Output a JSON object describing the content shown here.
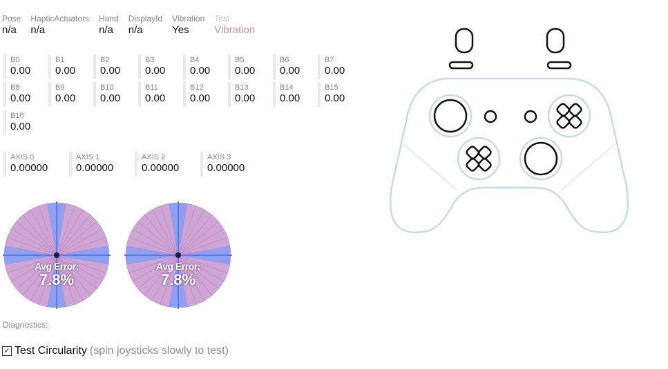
{
  "props": [
    {
      "label": "Pose",
      "value": "n/a"
    },
    {
      "label": "HapticActuators",
      "value": "n/a"
    },
    {
      "label": "Hand",
      "value": "n/a"
    },
    {
      "label": "DisplayId",
      "value": "n/a"
    },
    {
      "label": "Vibration",
      "value": "Yes"
    },
    {
      "label": "Test",
      "value": "Vibration"
    }
  ],
  "buttons": [
    {
      "label": "B0",
      "value": "0.00"
    },
    {
      "label": "B1",
      "value": "0.00"
    },
    {
      "label": "B2",
      "value": "0.00"
    },
    {
      "label": "B3",
      "value": "0.00"
    },
    {
      "label": "B4",
      "value": "0.00"
    },
    {
      "label": "B5",
      "value": "0.00"
    },
    {
      "label": "B6",
      "value": "0.00"
    },
    {
      "label": "B7",
      "value": "0.00"
    },
    {
      "label": "B8",
      "value": "0.00"
    },
    {
      "label": "B9",
      "value": "0.00"
    },
    {
      "label": "B10",
      "value": "0.00"
    },
    {
      "label": "B11",
      "value": "0.00"
    },
    {
      "label": "B12",
      "value": "0.00"
    },
    {
      "label": "B13",
      "value": "0.00"
    },
    {
      "label": "B14",
      "value": "0.00"
    },
    {
      "label": "B15",
      "value": "0.00"
    },
    {
      "label": "B16",
      "value": "0.00"
    }
  ],
  "axes": [
    {
      "label": "AXIS 0",
      "value": "0.00000"
    },
    {
      "label": "AXIS 1",
      "value": "0.00000"
    },
    {
      "label": "AXIS 2",
      "value": "0.00000"
    },
    {
      "label": "AXIS 3",
      "value": "0.00000"
    }
  ],
  "circularity": [
    {
      "line1": "Avg Error:",
      "line2": "7.8%"
    },
    {
      "line1": "Avg Error:",
      "line2": "7.8%"
    }
  ],
  "diagnostics_label": "Diagnostics:",
  "circularity_test": {
    "label": "Test Circularity",
    "hint": "(spin joysticks slowly to test)",
    "checked": true
  },
  "colors": {
    "pink": "#c38ec8",
    "blue": "#7a8ff0",
    "outline": "#c6dbe8"
  }
}
